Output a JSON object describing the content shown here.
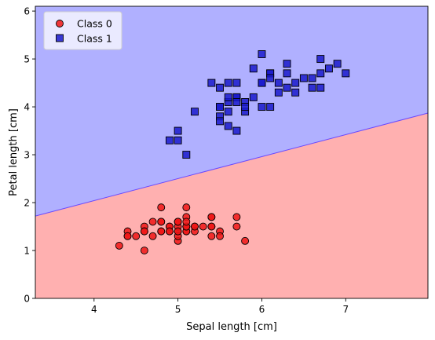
{
  "chart_data": {
    "type": "scatter",
    "title": "",
    "xlabel": "Sepal length [cm]",
    "ylabel": "Petal length [cm]",
    "xlim": [
      3.3,
      7.98
    ],
    "ylim": [
      0,
      6.1
    ],
    "xticks": [
      4,
      5,
      6,
      7
    ],
    "yticks": [
      0,
      1,
      2,
      3,
      4,
      5,
      6
    ],
    "grid": false,
    "legend_position": "top-left",
    "decision_boundary": {
      "x": [
        3.3,
        7.98
      ],
      "y": [
        1.72,
        3.87
      ],
      "region_below_class": "Class 0",
      "region_above_class": "Class 1"
    },
    "series": [
      {
        "name": "Class 0",
        "marker": "circle",
        "color": "#f01616",
        "region_color": "#ffb0b0",
        "x": [
          5.1,
          4.9,
          4.7,
          4.6,
          5.0,
          5.4,
          4.6,
          5.0,
          4.4,
          4.9,
          5.4,
          4.8,
          4.8,
          4.3,
          5.8,
          5.7,
          5.4,
          5.1,
          5.7,
          5.1,
          5.4,
          5.1,
          4.6,
          5.1,
          4.8,
          5.0,
          5.0,
          5.2,
          5.2,
          4.7,
          4.8,
          5.4,
          5.2,
          5.5,
          4.9,
          5.0,
          5.5,
          4.9,
          4.4,
          5.1,
          5.0,
          4.5,
          4.4,
          5.0,
          5.1,
          4.8,
          5.1,
          4.6,
          5.3,
          5.0
        ],
        "y": [
          1.4,
          1.4,
          1.3,
          1.5,
          1.4,
          1.7,
          1.4,
          1.5,
          1.4,
          1.5,
          1.5,
          1.6,
          1.4,
          1.1,
          1.2,
          1.5,
          1.3,
          1.4,
          1.7,
          1.5,
          1.7,
          1.5,
          1.0,
          1.7,
          1.9,
          1.6,
          1.6,
          1.5,
          1.4,
          1.6,
          1.6,
          1.5,
          1.5,
          1.4,
          1.5,
          1.2,
          1.3,
          1.4,
          1.3,
          1.5,
          1.3,
          1.3,
          1.3,
          1.6,
          1.9,
          1.4,
          1.6,
          1.4,
          1.5,
          1.4
        ]
      },
      {
        "name": "Class 1",
        "marker": "square",
        "color": "#1a1acc",
        "region_color": "#b0b0ff",
        "x": [
          7.0,
          6.4,
          6.9,
          5.5,
          6.5,
          5.7,
          6.3,
          4.9,
          6.6,
          5.2,
          5.0,
          5.9,
          6.0,
          6.1,
          5.6,
          6.7,
          5.6,
          5.8,
          6.2,
          5.6,
          5.9,
          6.1,
          6.3,
          6.1,
          6.4,
          6.6,
          6.8,
          6.7,
          6.0,
          5.7,
          5.5,
          5.5,
          5.8,
          6.0,
          5.4,
          6.0,
          6.7,
          6.3,
          5.6,
          5.5,
          5.5,
          6.1,
          5.8,
          5.0,
          5.6,
          5.7,
          5.7,
          6.2,
          5.1,
          5.7
        ],
        "y": [
          4.7,
          4.5,
          4.9,
          4.0,
          4.6,
          4.5,
          4.7,
          3.3,
          4.6,
          3.9,
          3.5,
          4.2,
          4.0,
          4.7,
          3.6,
          4.4,
          4.5,
          4.1,
          4.5,
          3.9,
          4.8,
          4.0,
          4.9,
          4.7,
          4.3,
          4.4,
          4.8,
          5.0,
          4.5,
          3.5,
          3.8,
          3.7,
          3.9,
          5.1,
          4.5,
          4.5,
          4.7,
          4.4,
          4.1,
          4.0,
          4.4,
          4.6,
          4.0,
          3.3,
          4.2,
          4.2,
          4.2,
          4.3,
          3.0,
          4.1
        ]
      }
    ]
  }
}
